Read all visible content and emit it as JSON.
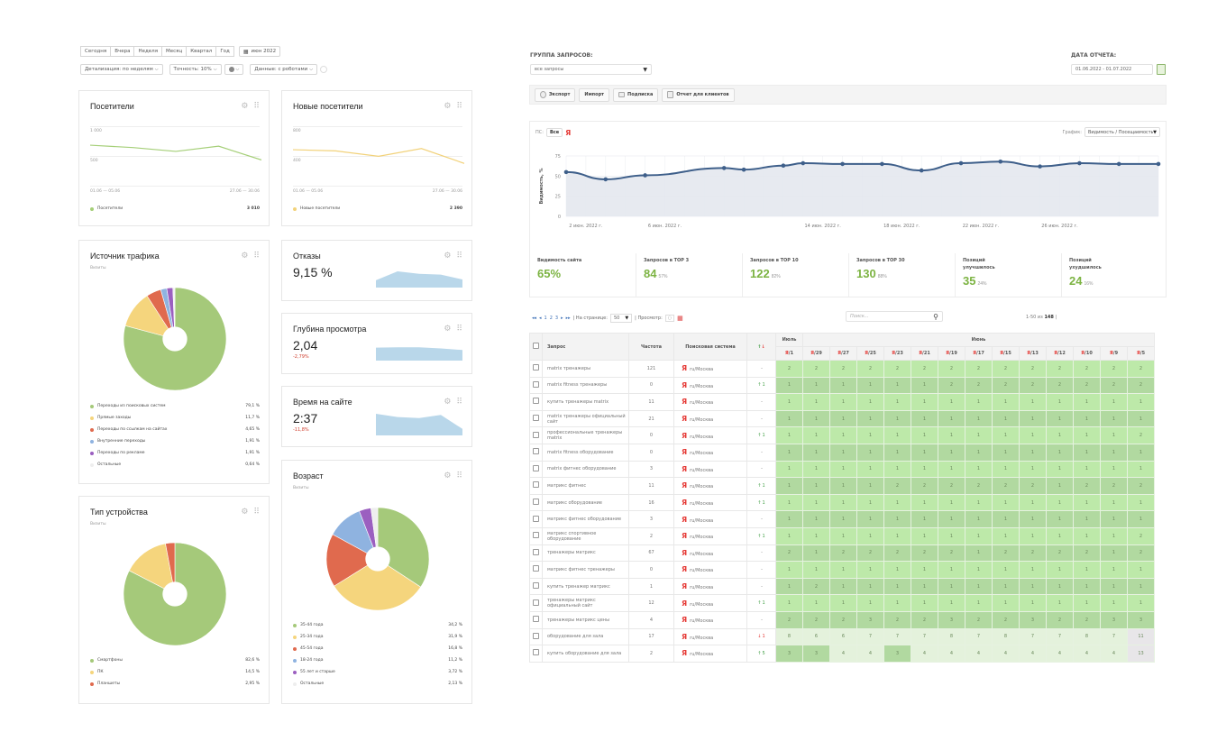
{
  "metrika": {
    "period_buttons": [
      "Сегодня",
      "Вчера",
      "Неделя",
      "Месяц",
      "Квартал",
      "Год"
    ],
    "date_button": "июн 2022",
    "filters": {
      "detail": "Детализация: по неделям",
      "accuracy": "Точность: 10%",
      "data": "Данные: с роботами"
    },
    "visitors": {
      "title": "Посетители",
      "y_ticks": [
        "1 000",
        "500"
      ],
      "x_start": "01.06 — 05.06",
      "x_end": "27.06 — 30.06",
      "legend_label": "Посетители",
      "total": "3 010",
      "color": "#a5cf78",
      "series": [
        870,
        820,
        740,
        850,
        560
      ],
      "ymax": 1250
    },
    "new_visitors": {
      "title": "Новые посетители",
      "y_ticks": [
        "800",
        "400"
      ],
      "x_start": "01.06 — 05.06",
      "x_end": "27.06 — 30.06",
      "legend_label": "Новые посетители",
      "total": "2 390",
      "color": "#f2d27a",
      "series": [
        620,
        600,
        510,
        640,
        390
      ],
      "ymax": 1000
    },
    "traffic_source": {
      "title": "Источник трафика",
      "subtitle": "Визиты",
      "items": [
        {
          "label": "Переходы из поисковых систем",
          "value": 79.1,
          "pct": "79,1 %",
          "color": "#a5c97a"
        },
        {
          "label": "Прямые заходы",
          "value": 11.7,
          "pct": "11,7 %",
          "color": "#f5d57d"
        },
        {
          "label": "Переходы по ссылкам на сайтах",
          "value": 4.65,
          "pct": "4,65 %",
          "color": "#e06a4e"
        },
        {
          "label": "Внутренние переходы",
          "value": 1.91,
          "pct": "1,91 %",
          "color": "#8fb3e0"
        },
        {
          "label": "Переходы по рекламе",
          "value": 1.91,
          "pct": "1,91 %",
          "color": "#9b5fc0"
        },
        {
          "label": "Остальные",
          "value": 0.64,
          "pct": "0,64 %",
          "color": "#eeeeee"
        }
      ]
    },
    "bounces": {
      "title": "Отказы",
      "value": "9,15 %",
      "spark": [
        0.45,
        1,
        0.85,
        0.8,
        0.5
      ]
    },
    "depth": {
      "title": "Глубина просмотра",
      "value": "2,04",
      "delta": "-2,79%",
      "spark": [
        0.8,
        0.82,
        0.82,
        0.75,
        0.65
      ]
    },
    "time": {
      "title": "Время на сайте",
      "value": "2:37",
      "delta": "-11,8%",
      "spark": [
        1,
        0.85,
        0.8,
        0.95,
        0.3
      ]
    },
    "device": {
      "title": "Тип устройства",
      "subtitle": "Визиты",
      "items": [
        {
          "label": "Смартфоны",
          "value": 82.6,
          "pct": "82,6 %",
          "color": "#a5c97a"
        },
        {
          "label": "ПК",
          "value": 14.5,
          "pct": "14,5 %",
          "color": "#f5d57d"
        },
        {
          "label": "Планшеты",
          "value": 2.95,
          "pct": "2,95 %",
          "color": "#e06a4e"
        }
      ]
    },
    "age": {
      "title": "Возраст",
      "subtitle": "Визиты",
      "items": [
        {
          "label": "35-44 года",
          "value": 34.2,
          "pct": "34,2 %",
          "color": "#a5c97a"
        },
        {
          "label": "25-34 года",
          "value": 31.9,
          "pct": "31,9 %",
          "color": "#f5d57d"
        },
        {
          "label": "45-54 года",
          "value": 16.8,
          "pct": "16,8 %",
          "color": "#e06a4e"
        },
        {
          "label": "18-24 года",
          "value": 11.2,
          "pct": "11,2 %",
          "color": "#8fb3e0"
        },
        {
          "label": "55 лет и старше",
          "value": 3.72,
          "pct": "3,72 %",
          "color": "#9b5fc0"
        },
        {
          "label": "Остальные",
          "value": 2.13,
          "pct": "2,13 %",
          "color": "#eeeeee"
        }
      ]
    }
  },
  "seo": {
    "group_label": "ГРУППА ЗАПРОСОВ:",
    "group_value": "все запросы",
    "date_label": "ДАТА ОТЧЕТА:",
    "date_value": "01.06.2022 - 01.07.2022",
    "actions": [
      "Экспорт",
      "Импорт",
      "Подписка",
      "Отчет для клиентов"
    ],
    "ps_label": "ПС:",
    "ps_all": "Все",
    "ps_ya": "Я",
    "graph_label": "График:",
    "graph_value": "Видимость / Посещаемость",
    "chart_data": {
      "type": "line",
      "ylabel": "Видимость, %",
      "yticks": [
        0,
        25,
        50,
        75
      ],
      "ylim": [
        0,
        75
      ],
      "x_labels": [
        "2 июн. 2022 г.",
        "6 июн. 2022 г.",
        "14 июн. 2022 г.",
        "18 июн. 2022 г.",
        "22 июн. 2022 г.",
        "26 июн. 2022 г."
      ],
      "x_label_days": [
        2,
        6,
        14,
        18,
        22,
        26
      ],
      "x_days": [
        1,
        3,
        5,
        9,
        10,
        12,
        13,
        15,
        17,
        19,
        21,
        23,
        25,
        27,
        29,
        31
      ],
      "values": [
        55,
        46,
        51,
        60,
        58,
        63,
        66,
        65,
        65,
        57,
        66,
        68,
        62,
        66,
        65,
        65
      ],
      "color": "#3e5f8a"
    },
    "stats": [
      {
        "title": "Видимость сайта",
        "value": "65%",
        "pct": ""
      },
      {
        "title": "Запросов в TOP 3",
        "value": "84",
        "pct": "57%"
      },
      {
        "title": "Запросов в TOP 10",
        "value": "122",
        "pct": "82%"
      },
      {
        "title": "Запросов в TOP 30",
        "value": "130",
        "pct": "88%"
      },
      {
        "title": "Позиций улучшилось",
        "value": "35",
        "pct": "24%"
      },
      {
        "title": "Позиций ухудшилось",
        "value": "24",
        "pct": "16%"
      }
    ],
    "pager": {
      "pages": [
        "1",
        "2",
        "3"
      ],
      "per_page_label": "| На странице:",
      "per_page": "50",
      "view_label": "| Просмотр:",
      "search_placeholder": "Поиск...",
      "range": "1-50 из",
      "total": "148"
    },
    "table": {
      "headers": {
        "query": "Запрос",
        "freq": "Частота",
        "engine": "Поисковая система",
        "change": "↑↓",
        "july": "Июль",
        "june": "Июнь"
      },
      "date_cols": [
        "1",
        "29",
        "27",
        "25",
        "23",
        "21",
        "19",
        "17",
        "15",
        "13",
        "12",
        "10",
        "9",
        "5"
      ],
      "rows": [
        {
          "query": "matrix тренажеры",
          "freq": "121",
          "region": "ru/Москва",
          "change": "-",
          "dir": "",
          "pos": [
            2,
            2,
            2,
            2,
            2,
            2,
            2,
            2,
            2,
            2,
            2,
            2,
            2,
            2
          ]
        },
        {
          "query": "matrix fitness тренажеры",
          "freq": "0",
          "region": "ru/Москва",
          "change": "1",
          "dir": "up",
          "pos": [
            1,
            1,
            1,
            1,
            1,
            1,
            2,
            2,
            2,
            2,
            2,
            2,
            2,
            2
          ]
        },
        {
          "query": "купить тренажеры matrix",
          "freq": "11",
          "region": "ru/Москва",
          "change": "-",
          "dir": "",
          "pos": [
            1,
            1,
            1,
            1,
            1,
            1,
            1,
            1,
            1,
            1,
            1,
            1,
            1,
            1
          ]
        },
        {
          "query": "matrix тренажеры официальный сайт",
          "freq": "21",
          "region": "ru/Москва",
          "change": "-",
          "dir": "",
          "pos": [
            1,
            1,
            1,
            1,
            1,
            1,
            1,
            1,
            1,
            1,
            1,
            1,
            1,
            1
          ]
        },
        {
          "query": "профессиональные тренажеры matrix",
          "freq": "0",
          "region": "ru/Москва",
          "change": "1",
          "dir": "up",
          "pos": [
            1,
            1,
            1,
            1,
            1,
            1,
            1,
            1,
            1,
            1,
            1,
            1,
            1,
            2
          ]
        },
        {
          "query": "matrix fitness оборудование",
          "freq": "0",
          "region": "ru/Москва",
          "change": "-",
          "dir": "",
          "pos": [
            1,
            1,
            1,
            1,
            1,
            1,
            1,
            1,
            1,
            1,
            1,
            1,
            1,
            1
          ]
        },
        {
          "query": "matrix фитнес оборудование",
          "freq": "3",
          "region": "ru/Москва",
          "change": "-",
          "dir": "",
          "pos": [
            1,
            1,
            1,
            1,
            1,
            1,
            1,
            1,
            1,
            1,
            1,
            1,
            1,
            1
          ]
        },
        {
          "query": "матрикс фитнес",
          "freq": "11",
          "region": "ru/Москва",
          "change": "1",
          "dir": "up",
          "pos": [
            1,
            1,
            1,
            1,
            2,
            2,
            2,
            2,
            2,
            2,
            1,
            2,
            2,
            2
          ]
        },
        {
          "query": "матрикс оборудование",
          "freq": "16",
          "region": "ru/Москва",
          "change": "1",
          "dir": "up",
          "pos": [
            1,
            1,
            1,
            1,
            1,
            1,
            1,
            1,
            1,
            1,
            1,
            1,
            1,
            1
          ]
        },
        {
          "query": "матрикс фитнес оборудование",
          "freq": "3",
          "region": "ru/Москва",
          "change": "-",
          "dir": "",
          "pos": [
            1,
            1,
            1,
            1,
            1,
            1,
            1,
            1,
            1,
            1,
            1,
            1,
            1,
            1
          ]
        },
        {
          "query": "матрикс спортивное оборудование",
          "freq": "2",
          "region": "ru/Москва",
          "change": "1",
          "dir": "up",
          "pos": [
            1,
            1,
            1,
            1,
            1,
            1,
            1,
            1,
            1,
            1,
            1,
            1,
            1,
            2
          ]
        },
        {
          "query": "тренажеры матрикс",
          "freq": "67",
          "region": "ru/Москва",
          "change": "-",
          "dir": "",
          "pos": [
            2,
            1,
            2,
            2,
            2,
            2,
            2,
            1,
            2,
            2,
            2,
            2,
            1,
            2
          ]
        },
        {
          "query": "матрикс фитнес тренажеры",
          "freq": "0",
          "region": "ru/Москва",
          "change": "-",
          "dir": "",
          "pos": [
            1,
            1,
            1,
            1,
            1,
            1,
            1,
            1,
            1,
            1,
            1,
            1,
            1,
            1
          ]
        },
        {
          "query": "купить тренажер матрикс",
          "freq": "1",
          "region": "ru/Москва",
          "change": "-",
          "dir": "",
          "pos": [
            1,
            2,
            1,
            1,
            1,
            1,
            1,
            1,
            1,
            1,
            1,
            1,
            1,
            1
          ]
        },
        {
          "query": "тренажеры матрикс официальный сайт",
          "freq": "12",
          "region": "ru/Москва",
          "change": "1",
          "dir": "up",
          "pos": [
            1,
            1,
            1,
            1,
            1,
            1,
            1,
            1,
            1,
            1,
            1,
            1,
            1,
            1
          ]
        },
        {
          "query": "тренажеры матрикс цены",
          "freq": "4",
          "region": "ru/Москва",
          "change": "-",
          "dir": "",
          "pos": [
            2,
            2,
            2,
            3,
            2,
            2,
            3,
            2,
            2,
            3,
            2,
            2,
            3,
            3
          ]
        },
        {
          "query": "оборудование для зала",
          "freq": "17",
          "region": "ru/Москва",
          "change": "1",
          "dir": "down",
          "pos": [
            8,
            6,
            6,
            7,
            7,
            7,
            8,
            7,
            8,
            7,
            7,
            8,
            7,
            11
          ]
        },
        {
          "query": "купить оборудование для зала",
          "freq": "2",
          "region": "ru/Москва",
          "change": "5",
          "dir": "up",
          "pos": [
            3,
            3,
            4,
            4,
            3,
            4,
            4,
            4,
            4,
            4,
            4,
            4,
            4,
            13
          ]
        }
      ]
    }
  }
}
